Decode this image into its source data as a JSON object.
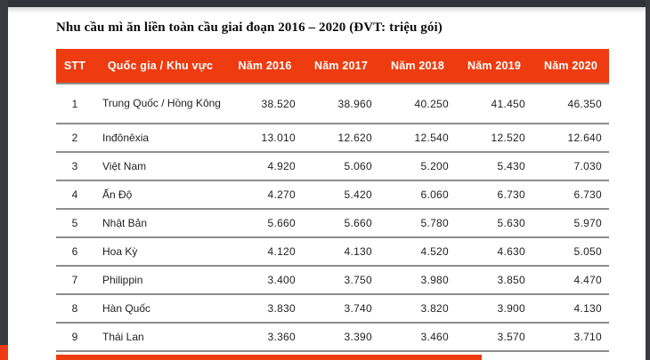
{
  "document": {
    "title": "Nhu cầu mì ăn liền toàn cầu giai đoạn 2016 – 2020 (ĐVT: triệu gói)"
  },
  "table": {
    "header_bg": "#ee3c10",
    "columns": [
      "STT",
      "Quốc gia / Khu vực",
      "Năm 2016",
      "Năm 2017",
      "Năm 2018",
      "Năm 2019",
      "Năm 2020"
    ],
    "rows": [
      {
        "stt": "1",
        "country": "Trung Quốc / Hồng Kông",
        "values": [
          "38.520",
          "38.960",
          "40.250",
          "41.450",
          "46.350"
        ]
      },
      {
        "stt": "2",
        "country": "Inđônêxia",
        "values": [
          "13.010",
          "12.620",
          "12.540",
          "12.520",
          "12.640"
        ]
      },
      {
        "stt": "3",
        "country": "Việt Nam",
        "values": [
          "4.920",
          "5.060",
          "5.200",
          "5.430",
          "7.030"
        ]
      },
      {
        "stt": "4",
        "country": "Ấn Độ",
        "values": [
          "4.270",
          "5.420",
          "6.060",
          "6.730",
          "6.730"
        ]
      },
      {
        "stt": "5",
        "country": "Nhật Bản",
        "values": [
          "5.660",
          "5.660",
          "5.780",
          "5.630",
          "5.970"
        ]
      },
      {
        "stt": "6",
        "country": "Hoa Kỳ",
        "values": [
          "4.120",
          "4.130",
          "4.520",
          "4.630",
          "5.050"
        ]
      },
      {
        "stt": "7",
        "country": "Philippin",
        "values": [
          "3.400",
          "3.750",
          "3.980",
          "3.850",
          "4.470"
        ]
      },
      {
        "stt": "8",
        "country": "Hàn Quốc",
        "values": [
          "3.830",
          "3.740",
          "3.820",
          "3.900",
          "4.130"
        ]
      },
      {
        "stt": "9",
        "country": "Thái Lan",
        "values": [
          "3.360",
          "3.390",
          "3.460",
          "3.570",
          "3.710"
        ]
      }
    ]
  },
  "partial_next_bar": {
    "color": "#ee3c10"
  },
  "colors": {
    "accent": "#ee3c10",
    "frame": "#383b40",
    "row_border": "#8d8d8d"
  }
}
